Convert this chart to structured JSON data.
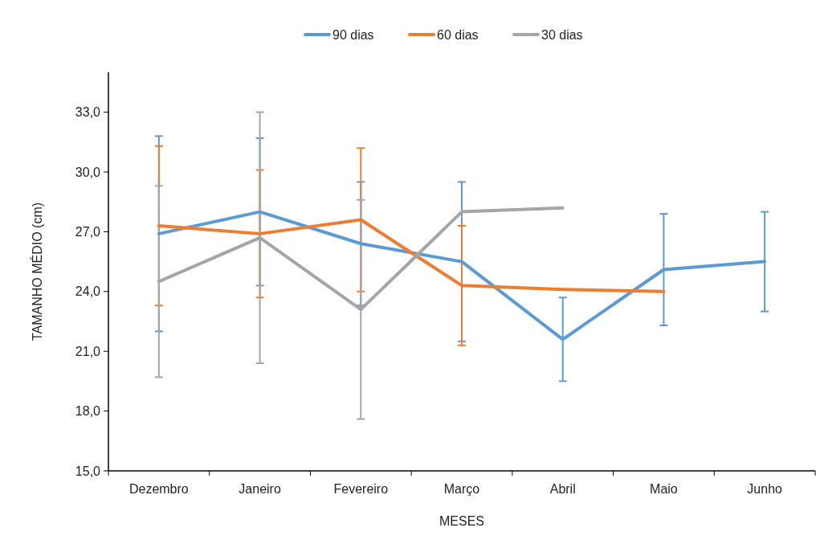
{
  "chart_data": {
    "type": "line",
    "xlabel": "MESES",
    "ylabel": "TAMANHO MÉDIO (cm)",
    "categories": [
      "Dezembro",
      "Janeiro",
      "Fevereiro",
      "Março",
      "Abril",
      "Maio",
      "Junho"
    ],
    "ylim": [
      15,
      35
    ],
    "yticks": [
      {
        "value": 15,
        "label": "15,0"
      },
      {
        "value": 18,
        "label": "18,0"
      },
      {
        "value": 21,
        "label": "21,0"
      },
      {
        "value": 24,
        "label": "24,0"
      },
      {
        "value": 27,
        "label": "27,0"
      },
      {
        "value": 30,
        "label": "30,0"
      },
      {
        "value": 33,
        "label": "33,0"
      }
    ],
    "legend": "top",
    "grid": false,
    "marker": "none",
    "line_style": "solid",
    "series": [
      {
        "name": "90 dias",
        "color": "#5b9bd5",
        "values": [
          26.9,
          28.0,
          26.4,
          25.5,
          21.6,
          25.1,
          25.5
        ],
        "errors": [
          4.9,
          3.7,
          3.1,
          4.0,
          2.1,
          2.8,
          2.5
        ]
      },
      {
        "name": "60 dias",
        "color": "#ed7d31",
        "values": [
          27.3,
          26.9,
          27.6,
          24.3,
          24.1,
          24.0,
          null
        ],
        "errors": [
          4.0,
          3.2,
          3.6,
          3.0,
          null,
          null,
          null
        ]
      },
      {
        "name": "30 dias",
        "color": "#a5a5a5",
        "values": [
          24.5,
          26.7,
          23.1,
          28.0,
          28.2,
          null,
          null
        ],
        "errors": [
          4.8,
          6.3,
          5.5,
          null,
          null,
          null,
          null
        ]
      }
    ]
  }
}
